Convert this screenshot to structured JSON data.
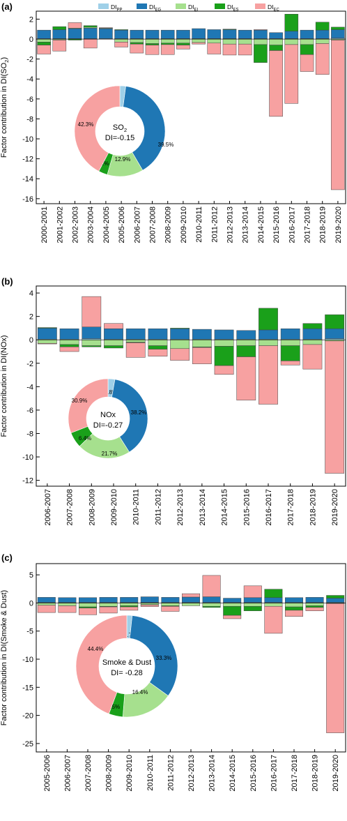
{
  "colors": {
    "DI_PP": "#9fd0e8",
    "DI_EG": "#1f77b4",
    "DI_EI": "#a6e08e",
    "DI_ES": "#1aa01a",
    "DI_EC": "#f7a1a1"
  },
  "legend": {
    "placement": "top-center",
    "items": [
      {
        "key": "DI_PP",
        "base": "DI",
        "sub": "PP"
      },
      {
        "key": "DI_EG",
        "base": "DI",
        "sub": "EG"
      },
      {
        "key": "DI_EI",
        "base": "DI",
        "sub": "EI"
      },
      {
        "key": "DI_ES",
        "base": "DI",
        "sub": "ES"
      },
      {
        "key": "DI_EC",
        "base": "DI",
        "sub": "EC"
      }
    ]
  },
  "chart_data": [
    {
      "type": "bar",
      "stacked": true,
      "panel_label": "(a)",
      "ylabel_prefix": "Factor contribution in DI(SO",
      "ylabel_sub": "2",
      "ylabel_suffix": ")",
      "ylim": [
        -16.5,
        2.8
      ],
      "yticks": [
        2,
        0,
        -2,
        -4,
        -6,
        -8,
        -10,
        -12,
        -14,
        -16
      ],
      "categories": [
        "2000-2001",
        "2001-2002",
        "2002-2003",
        "2003-2004",
        "2004-2005",
        "2005-2006",
        "2006-2007",
        "2007-2008",
        "2008-2009",
        "2009-2010",
        "2010-2011",
        "2011-2012",
        "2012-2013",
        "2013-2014",
        "2014-2015",
        "2015-2016",
        "2016-2017",
        "2017-2018",
        "2018-2019",
        "2019-2020"
      ],
      "series": [
        {
          "key": "DI_PP",
          "values": [
            0.05,
            0.05,
            0.05,
            0.05,
            0.05,
            0.05,
            0.05,
            0.05,
            0.05,
            0.05,
            0.05,
            0.05,
            0.05,
            0.05,
            0.05,
            0.05,
            0.05,
            0.05,
            0.05,
            0.1
          ]
        },
        {
          "key": "DI_EG",
          "values": [
            0.85,
            0.9,
            1.0,
            1.05,
            1.0,
            0.85,
            0.85,
            0.85,
            0.85,
            0.85,
            1.0,
            0.9,
            0.9,
            0.85,
            0.85,
            0.6,
            0.75,
            0.85,
            0.85,
            0.85
          ]
        },
        {
          "key": "DI_EI",
          "values": [
            -0.3,
            -0.1,
            0.05,
            0.1,
            0.05,
            -0.3,
            -0.35,
            -0.45,
            -0.4,
            -0.4,
            -0.35,
            -0.4,
            -0.5,
            -0.5,
            -0.55,
            -0.6,
            -0.55,
            -0.55,
            -0.45,
            -0.1
          ]
        },
        {
          "key": "DI_ES",
          "values": [
            -0.3,
            0.3,
            -0.1,
            0.15,
            0.0,
            0.05,
            -0.15,
            -0.15,
            -0.15,
            -0.2,
            0.0,
            0.0,
            0.05,
            0.0,
            -1.8,
            -0.55,
            1.7,
            -1.0,
            0.8,
            0.25
          ]
        },
        {
          "key": "DI_EC",
          "values": [
            -0.9,
            -1.1,
            0.55,
            -0.9,
            0.05,
            -0.5,
            -0.9,
            -0.95,
            -1.0,
            -0.4,
            -0.15,
            -1.1,
            -1.1,
            -1.1,
            0.05,
            -6.6,
            -5.9,
            -1.7,
            -3.1,
            -15.0
          ]
        }
      ],
      "donut": {
        "center_line1_base": "SO",
        "center_line1_sub": "2",
        "center_line2": "DI=-0.15",
        "slices": [
          {
            "key": "DI_PP",
            "value": 2.1,
            "label": "2.1%"
          },
          {
            "key": "DI_EG",
            "value": 39.5,
            "label": "39.5%"
          },
          {
            "key": "DI_EI",
            "value": 12.9,
            "label": "12.9%"
          },
          {
            "key": "DI_ES",
            "value": 3.2,
            "label": "3.2%"
          },
          {
            "key": "DI_EC",
            "value": 42.3,
            "label": "42.3%"
          }
        ]
      }
    },
    {
      "type": "bar",
      "stacked": true,
      "panel_label": "(b)",
      "ylabel_prefix": "Factor contribution in DI(NOx)",
      "ylabel_sub": "",
      "ylabel_suffix": "",
      "ylim": [
        -12.5,
        4.6
      ],
      "yticks": [
        4,
        2,
        0,
        -2,
        -4,
        -6,
        -8,
        -10,
        -12
      ],
      "categories": [
        "2006-2007",
        "2007-2008",
        "2008-2009",
        "2009-2010",
        "2010-2011",
        "2011-2012",
        "2012-2013",
        "2013-2014",
        "2014-2015",
        "2015-2016",
        "2016-2017",
        "2017-2018",
        "2018-2019",
        "2019-2020"
      ],
      "series": [
        {
          "key": "DI_PP",
          "values": [
            0.05,
            0.05,
            0.1,
            0.05,
            0.05,
            0.05,
            0.05,
            0.05,
            0.05,
            0.05,
            0.05,
            0.05,
            0.05,
            0.1
          ]
        },
        {
          "key": "DI_EG",
          "values": [
            0.95,
            0.9,
            1.0,
            0.9,
            0.9,
            0.9,
            0.9,
            0.85,
            0.8,
            0.75,
            0.8,
            0.9,
            0.9,
            0.85
          ]
        },
        {
          "key": "DI_EI",
          "values": [
            -0.3,
            -0.4,
            -0.5,
            -0.5,
            -0.2,
            -0.5,
            -0.75,
            -0.6,
            -0.55,
            -0.5,
            -0.5,
            -0.5,
            -0.4,
            -0.1
          ]
        },
        {
          "key": "DI_ES",
          "values": [
            0.05,
            -0.2,
            -0.1,
            -0.2,
            -0.05,
            -0.3,
            0.05,
            -0.05,
            -1.65,
            -0.95,
            1.85,
            -1.3,
            0.45,
            1.2
          ]
        },
        {
          "key": "DI_EC",
          "values": [
            -0.05,
            -0.4,
            2.6,
            0.45,
            -1.25,
            -0.6,
            -1.0,
            -1.4,
            -0.75,
            -3.7,
            -5.0,
            -0.35,
            -2.1,
            -11.3
          ]
        }
      ],
      "donut": {
        "center_line1_base": "NOx",
        "center_line1_sub": "",
        "center_line2": "DI=-0.27",
        "slices": [
          {
            "key": "DI_PP",
            "value": 2.8,
            "label": "2.8%"
          },
          {
            "key": "DI_EG",
            "value": 38.2,
            "label": "38.2%"
          },
          {
            "key": "DI_EI",
            "value": 21.7,
            "label": "21.7%"
          },
          {
            "key": "DI_ES",
            "value": 6.4,
            "label": "6.4%"
          },
          {
            "key": "DI_EC",
            "value": 30.9,
            "label": "30.9%"
          }
        ]
      }
    },
    {
      "type": "bar",
      "stacked": true,
      "panel_label": "(c)",
      "ylabel_prefix": "Factor contribution in DI(Smoke & Dust)",
      "ylabel_sub": "",
      "ylabel_suffix": "",
      "ylim": [
        -26.5,
        7.0
      ],
      "yticks": [
        5,
        0,
        -5,
        -10,
        -15,
        -20,
        -25
      ],
      "categories": [
        "2005-2006",
        "2006-2007",
        "2007-2008",
        "2008-2009",
        "2009-2010",
        "2010-2011",
        "2011-2012",
        "2012-2013",
        "2013-2014",
        "2014-2015",
        "2015-2016",
        "2016-2017",
        "2017-2018",
        "2018-2019",
        "2019-2020"
      ],
      "series": [
        {
          "key": "DI_PP",
          "values": [
            0.1,
            0.1,
            0.1,
            0.1,
            0.1,
            0.1,
            0.1,
            0.1,
            0.1,
            0.1,
            0.1,
            0.1,
            0.1,
            0.1,
            0.1
          ]
        },
        {
          "key": "DI_EG",
          "values": [
            0.9,
            0.85,
            0.85,
            0.9,
            0.9,
            1.0,
            0.9,
            0.95,
            1.0,
            0.75,
            0.85,
            0.85,
            0.85,
            0.9,
            0.75
          ]
        },
        {
          "key": "DI_EI",
          "values": [
            -0.4,
            -0.5,
            -0.7,
            -0.6,
            -0.5,
            -0.3,
            -0.5,
            -0.5,
            -0.6,
            -0.6,
            -0.6,
            -0.6,
            -0.7,
            -0.5,
            -0.1
          ]
        },
        {
          "key": "DI_ES",
          "values": [
            0.0,
            0.0,
            -0.2,
            -0.1,
            -0.2,
            -0.05,
            -0.1,
            0.0,
            -0.2,
            -1.6,
            -0.8,
            1.5,
            -0.6,
            -0.3,
            0.5
          ]
        },
        {
          "key": "DI_EC",
          "values": [
            -1.3,
            -1.2,
            -1.2,
            -1.1,
            -0.6,
            -0.3,
            -0.9,
            0.6,
            3.8,
            -0.6,
            2.1,
            -4.8,
            -1.1,
            -0.6,
            -23.0
          ]
        }
      ],
      "donut": {
        "center_line1_base": "Smoke & Dust",
        "center_line1_sub": "",
        "center_line2": "DI= -0.28",
        "slices": [
          {
            "key": "DI_PP",
            "value": 1.7,
            "label": "1.7%"
          },
          {
            "key": "DI_EG",
            "value": 33.3,
            "label": "33.3%"
          },
          {
            "key": "DI_EI",
            "value": 16.4,
            "label": "16.4%"
          },
          {
            "key": "DI_ES",
            "value": 4.5,
            "label": "4.5%"
          },
          {
            "key": "DI_EC",
            "value": 44.4,
            "label": "44.4%"
          }
        ]
      }
    }
  ]
}
